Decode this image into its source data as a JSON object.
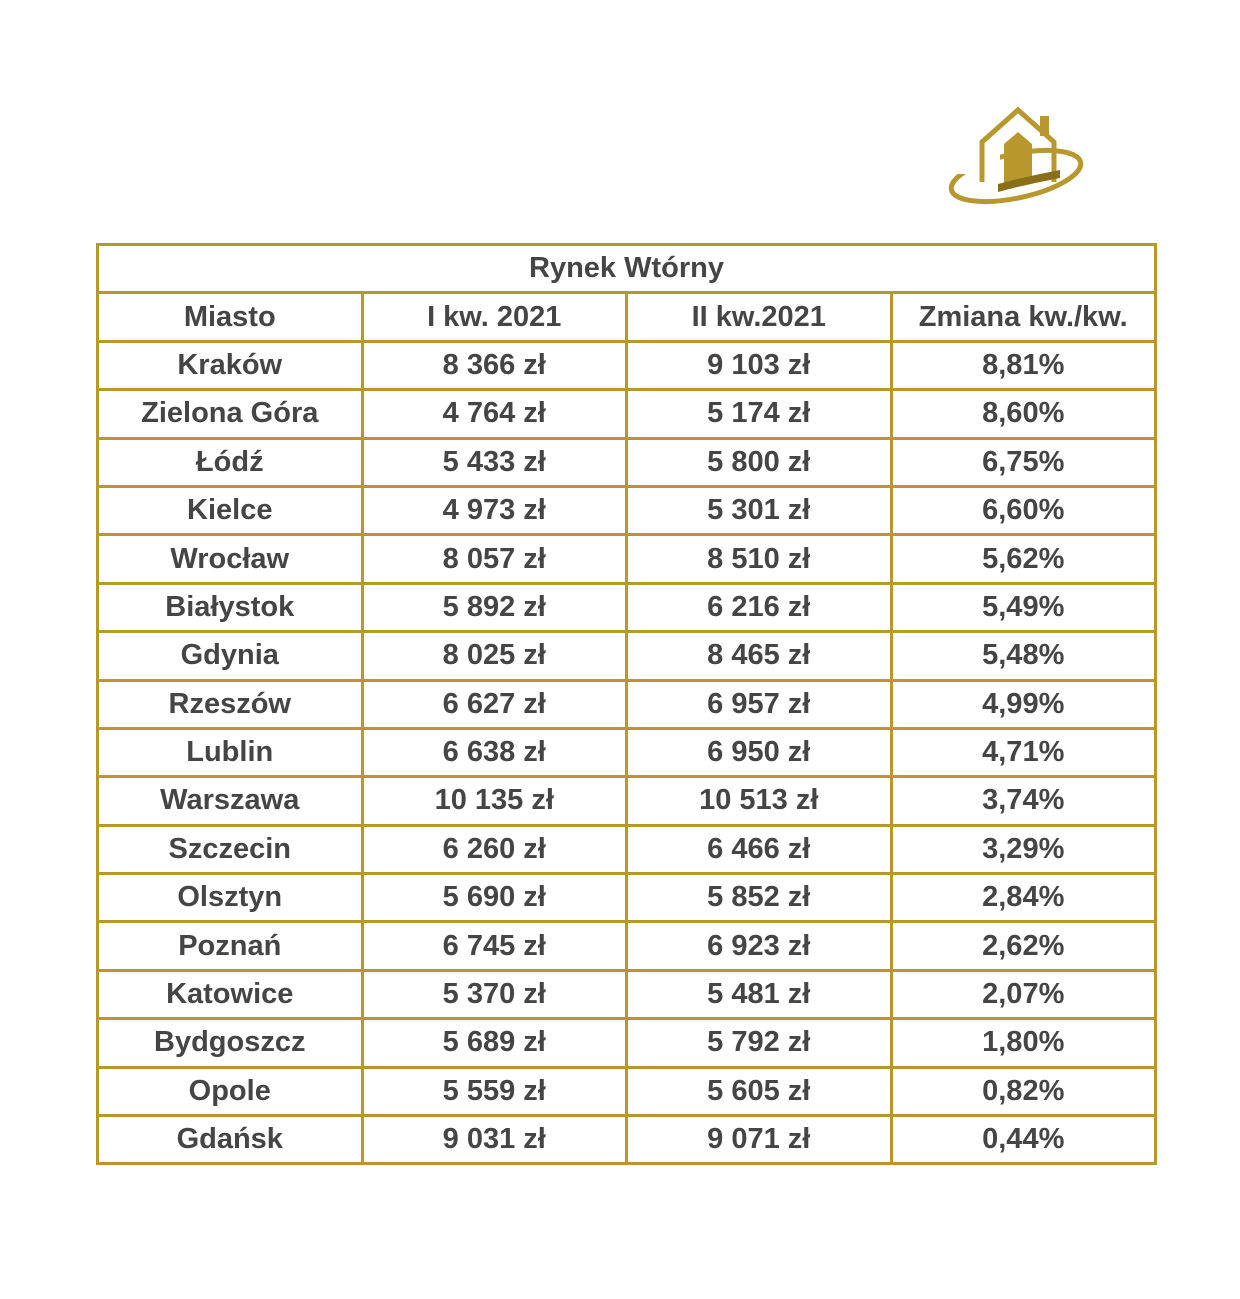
{
  "table": {
    "title": "Rynek Wtórny",
    "header": [
      "Miasto",
      "I kw. 2021",
      "II kw.2021",
      "Zmiana kw./kw."
    ],
    "rows": [
      [
        "Kraków",
        "8 366 zł",
        "9 103 zł",
        "8,81%"
      ],
      [
        "Zielona Góra",
        "4 764 zł",
        "5 174 zł",
        "8,60%"
      ],
      [
        "Łódź",
        "5 433 zł",
        "5 800 zł",
        "6,75%"
      ],
      [
        "Kielce",
        "4 973 zł",
        "5 301 zł",
        "6,60%"
      ],
      [
        "Wrocław",
        "8 057 zł",
        "8 510 zł",
        "5,62%"
      ],
      [
        "Białystok",
        "5 892 zł",
        "6 216 zł",
        "5,49%"
      ],
      [
        "Gdynia",
        "8 025 zł",
        "8 465 zł",
        "5,48%"
      ],
      [
        "Rzeszów",
        "6 627 zł",
        "6 957 zł",
        "4,99%"
      ],
      [
        "Lublin",
        "6 638 zł",
        "6 950 zł",
        "4,71%"
      ],
      [
        "Warszawa",
        "10 135 zł",
        "10 513 zł",
        "3,74%"
      ],
      [
        "Szczecin",
        "6 260 zł",
        "6 466 zł",
        "3,29%"
      ],
      [
        "Olsztyn",
        "5 690 zł",
        "5 852 zł",
        "2,84%"
      ],
      [
        "Poznań",
        "6 745 zł",
        "6 923 zł",
        "2,62%"
      ],
      [
        "Katowice",
        "5 370 zł",
        "5 481 zł",
        "2,07%"
      ],
      [
        "Bydgoszcz",
        "5 689 zł",
        "5 792 zł",
        "1,80%"
      ],
      [
        "Opole",
        "5 559 zł",
        "5 605 zł",
        "0,82%"
      ],
      [
        "Gdańsk",
        "9 031 zł",
        "9 071 zł",
        "0,44%"
      ]
    ]
  }
}
